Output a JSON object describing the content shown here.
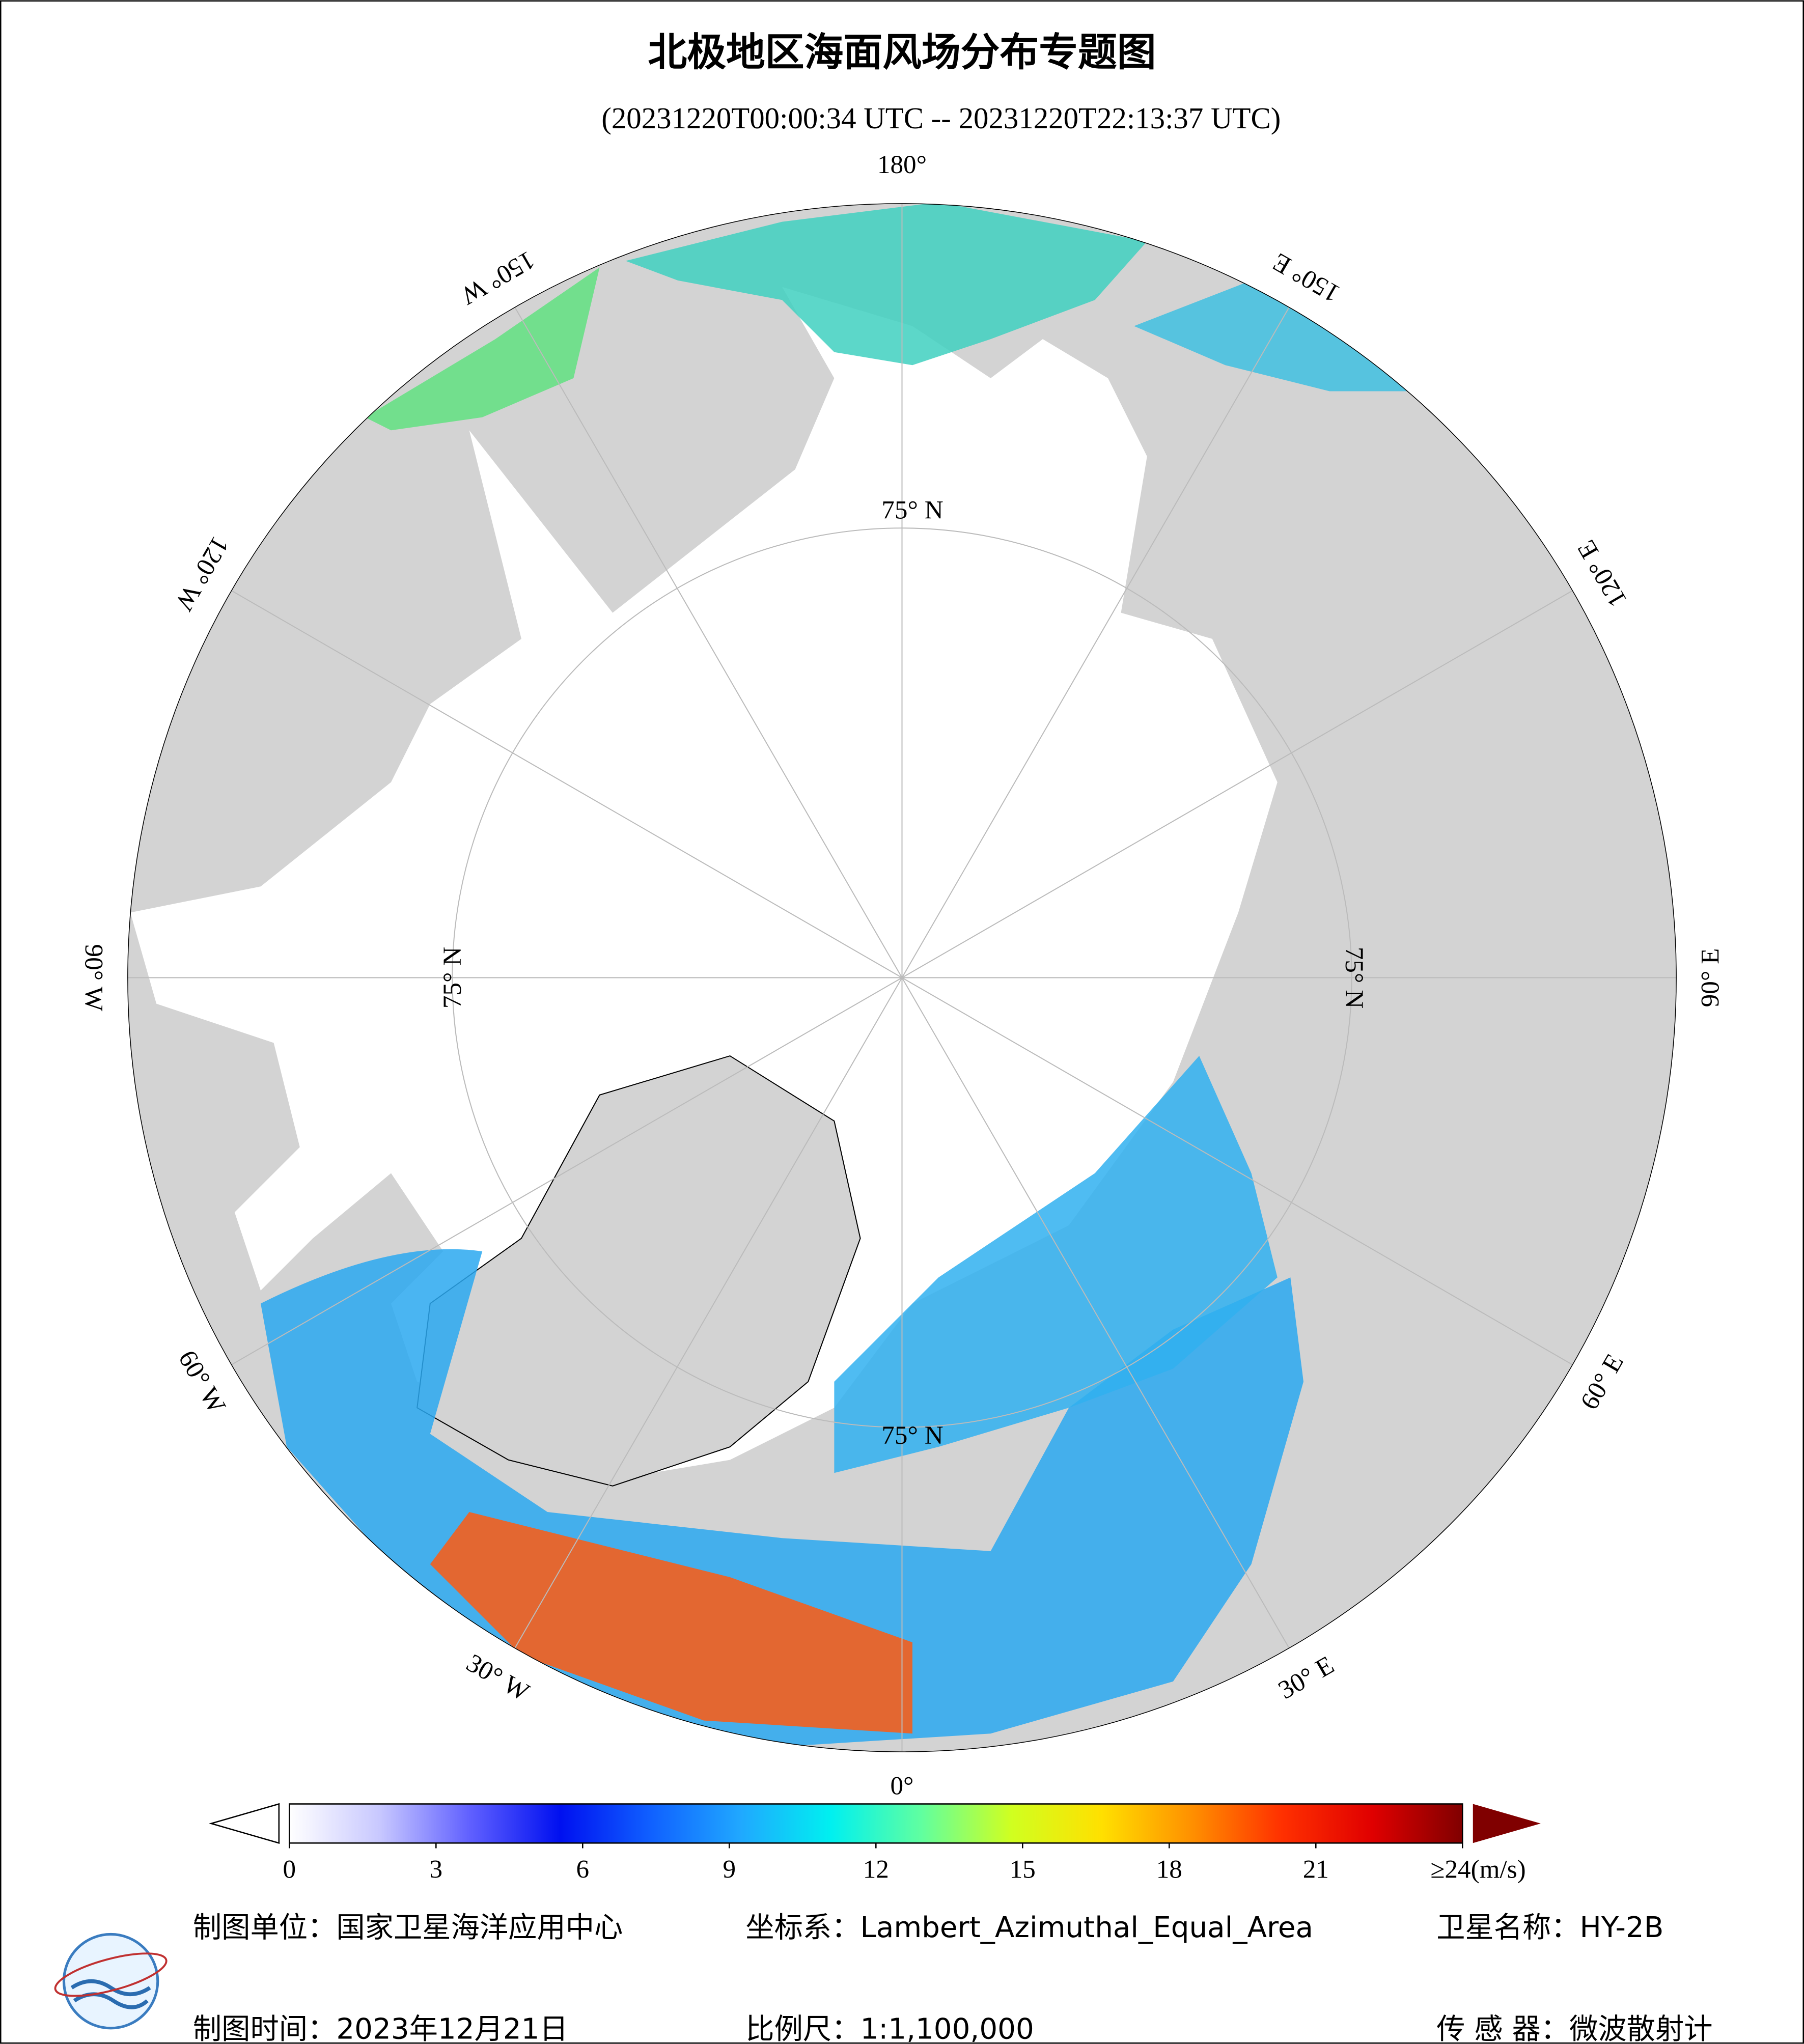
{
  "header": {
    "title": "北极地区海面风场分布专题图",
    "subtitle": "(20231220T00:00:34 UTC -- 20231220T22:13:37 UTC)"
  },
  "map": {
    "longitude_labels": [
      {
        "lon": 180,
        "label": "180°"
      },
      {
        "lon": 150,
        "label": "150° E"
      },
      {
        "lon": 120,
        "label": "120° E"
      },
      {
        "lon": 90,
        "label": "90° E"
      },
      {
        "lon": 60,
        "label": "60° E"
      },
      {
        "lon": 30,
        "label": "30° E"
      },
      {
        "lon": 0,
        "label": "0°"
      },
      {
        "lon": -30,
        "label": "30° W"
      },
      {
        "lon": -60,
        "label": "60° W"
      },
      {
        "lon": -90,
        "label": "90° W"
      },
      {
        "lon": -120,
        "label": "120° W"
      },
      {
        "lon": -150,
        "label": "150° W"
      }
    ],
    "latitude_labels": [
      "75° N",
      "75° N",
      "75° N",
      "75° N"
    ]
  },
  "colorbar": {
    "range": [
      0,
      24
    ],
    "ticks": [
      0,
      3,
      6,
      9,
      12,
      15,
      18,
      21,
      {
        "value": 24,
        "label": "≥24(m/s)"
      }
    ],
    "colors": [
      "#ffffff",
      "#c8c8ff",
      "#6060ff",
      "#0010f0",
      "#1060ff",
      "#20a8ff",
      "#00f0f0",
      "#60ffa0",
      "#d0ff20",
      "#ffe000",
      "#ff9000",
      "#ff3000",
      "#e00000",
      "#800000"
    ]
  },
  "footer": {
    "unit": "制图单位：国家卫星海洋应用中心",
    "coords": "坐标系：Lambert_Azimuthal_Equal_Area",
    "satellite": "卫星名称：HY-2B",
    "date": "制图时间：2023年12月21日",
    "scale": "比例尺：1:1,100,000",
    "sensor": "传 感 器：微波散射计"
  }
}
